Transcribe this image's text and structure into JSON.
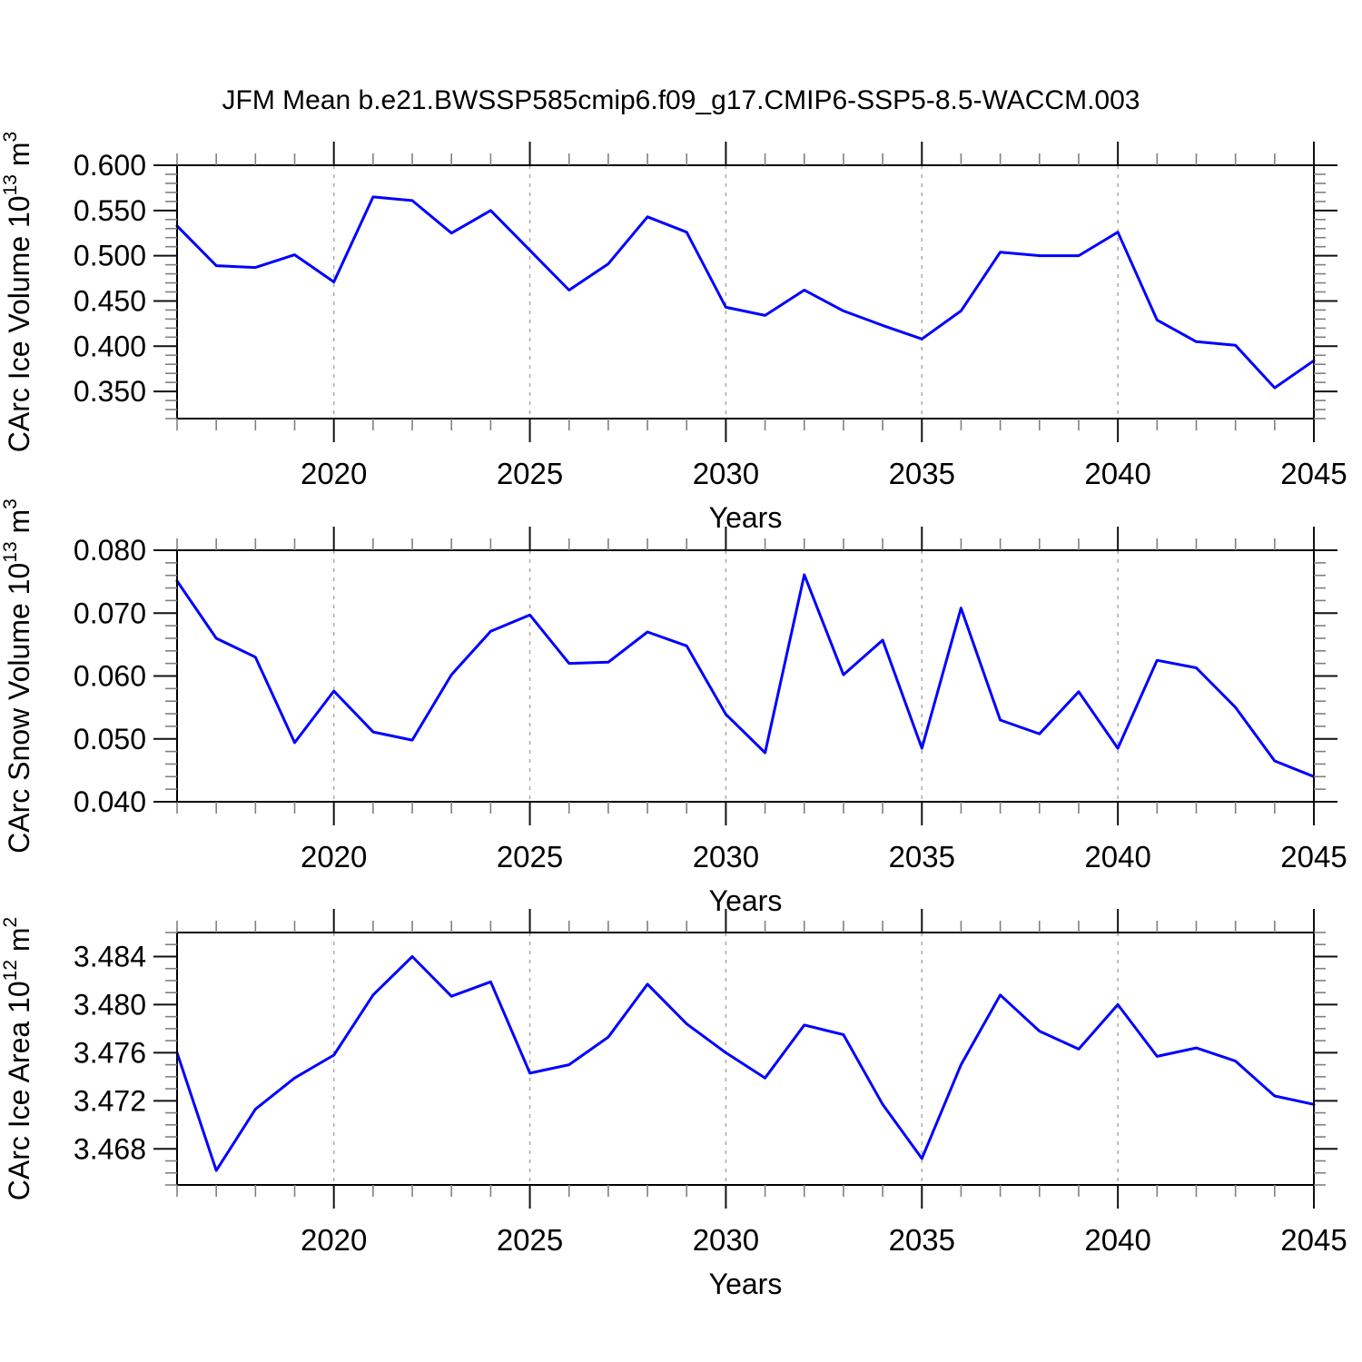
{
  "title": "JFM Mean b.e21.BWSSP585cmip6.f09_g17.CMIP6-SSP5-8.5-WACCM.003",
  "colors": {
    "line": "#0000ff",
    "grid": "#ababab",
    "frame": "#000000",
    "minor_tick": "#808080"
  },
  "chart_data": [
    {
      "type": "line",
      "name": "carc-ice-volume",
      "ylabel": "CArc Ice Volume 10^13 m^3",
      "xlabel": "Years",
      "x": [
        2016,
        2017,
        2018,
        2019,
        2020,
        2021,
        2022,
        2023,
        2024,
        2025,
        2026,
        2027,
        2028,
        2029,
        2030,
        2031,
        2032,
        2033,
        2034,
        2035,
        2036,
        2037,
        2038,
        2039,
        2040,
        2041,
        2042,
        2043,
        2044,
        2045
      ],
      "values": [
        0.533,
        0.489,
        0.487,
        0.501,
        0.471,
        0.565,
        0.561,
        0.525,
        0.55,
        0.506,
        0.462,
        0.491,
        0.543,
        0.526,
        0.443,
        0.434,
        0.462,
        0.439,
        0.423,
        0.408,
        0.439,
        0.504,
        0.5,
        0.5,
        0.526,
        0.429,
        0.405,
        0.401,
        0.354,
        0.384
      ],
      "xlim": [
        2016,
        2045
      ],
      "ylim": [
        0.32,
        0.6
      ],
      "yticks": [
        0.35,
        0.4,
        0.45,
        0.5,
        0.55,
        0.6
      ],
      "ytick_labels": [
        "0.350",
        "0.400",
        "0.450",
        "0.500",
        "0.550",
        "0.600"
      ],
      "ytick_minor_step": 0.01,
      "xticks": [
        2020,
        2025,
        2030,
        2035,
        2040,
        2045
      ],
      "xtick_labels": [
        "2020",
        "2025",
        "2030",
        "2035",
        "2040",
        "2045"
      ],
      "xtick_minor_step": 1,
      "grid_x": [
        2020,
        2025,
        2030,
        2035,
        2040
      ],
      "grid_style": "vertical-dashed"
    },
    {
      "type": "line",
      "name": "carc-snow-volume",
      "ylabel": "CArc Snow Volume 10^13 m^3",
      "xlabel": "Years",
      "x": [
        2016,
        2017,
        2018,
        2019,
        2020,
        2021,
        2022,
        2023,
        2024,
        2025,
        2026,
        2027,
        2028,
        2029,
        2030,
        2031,
        2032,
        2033,
        2034,
        2035,
        2036,
        2037,
        2038,
        2039,
        2040,
        2041,
        2042,
        2043,
        2044,
        2045
      ],
      "values": [
        0.0751,
        0.066,
        0.063,
        0.0494,
        0.0576,
        0.0511,
        0.0498,
        0.0602,
        0.0671,
        0.0697,
        0.062,
        0.0622,
        0.067,
        0.0648,
        0.0539,
        0.0478,
        0.0761,
        0.0602,
        0.0657,
        0.0485,
        0.0708,
        0.053,
        0.0508,
        0.0575,
        0.0485,
        0.0625,
        0.0613,
        0.055,
        0.0465,
        0.044
      ],
      "xlim": [
        2016,
        2045
      ],
      "ylim": [
        0.04,
        0.08
      ],
      "yticks": [
        0.04,
        0.05,
        0.06,
        0.07,
        0.08
      ],
      "ytick_labels": [
        "0.040",
        "0.050",
        "0.060",
        "0.070",
        "0.080"
      ],
      "ytick_minor_step": 0.002,
      "xticks": [
        2020,
        2025,
        2030,
        2035,
        2040,
        2045
      ],
      "xtick_labels": [
        "2020",
        "2025",
        "2030",
        "2035",
        "2040",
        "2045"
      ],
      "xtick_minor_step": 1,
      "grid_x": [
        2020,
        2025,
        2030,
        2035,
        2040
      ],
      "grid_style": "vertical-dashed"
    },
    {
      "type": "line",
      "name": "carc-ice-area",
      "ylabel": "CArc Ice Area 10^12 m^2",
      "xlabel": "Years",
      "x": [
        2016,
        2017,
        2018,
        2019,
        2020,
        2021,
        2022,
        2023,
        2024,
        2025,
        2026,
        2027,
        2028,
        2029,
        2030,
        2031,
        2032,
        2033,
        2034,
        2035,
        2036,
        2037,
        2038,
        2039,
        2040,
        2041,
        2042,
        2043,
        2044,
        2045
      ],
      "values": [
        3.476,
        3.4662,
        3.4713,
        3.4739,
        3.4758,
        3.4808,
        3.484,
        3.4807,
        3.4819,
        3.4743,
        3.475,
        3.4773,
        3.4817,
        3.4784,
        3.476,
        3.4739,
        3.4783,
        3.4775,
        3.4717,
        3.4672,
        3.475,
        3.4808,
        3.4778,
        3.4763,
        3.48,
        3.4757,
        3.4764,
        3.4753,
        3.4724,
        3.4717
      ],
      "xlim": [
        2016,
        2045
      ],
      "ylim": [
        3.465,
        3.486
      ],
      "yticks": [
        3.468,
        3.472,
        3.476,
        3.48,
        3.484
      ],
      "ytick_labels": [
        "3.468",
        "3.472",
        "3.476",
        "3.480",
        "3.484"
      ],
      "ytick_minor_step": 0.001,
      "xticks": [
        2020,
        2025,
        2030,
        2035,
        2040,
        2045
      ],
      "xtick_labels": [
        "2020",
        "2025",
        "2030",
        "2035",
        "2040",
        "2045"
      ],
      "xtick_minor_step": 1,
      "grid_x": [
        2020,
        2025,
        2030,
        2035,
        2040
      ],
      "grid_style": "vertical-dashed"
    }
  ]
}
